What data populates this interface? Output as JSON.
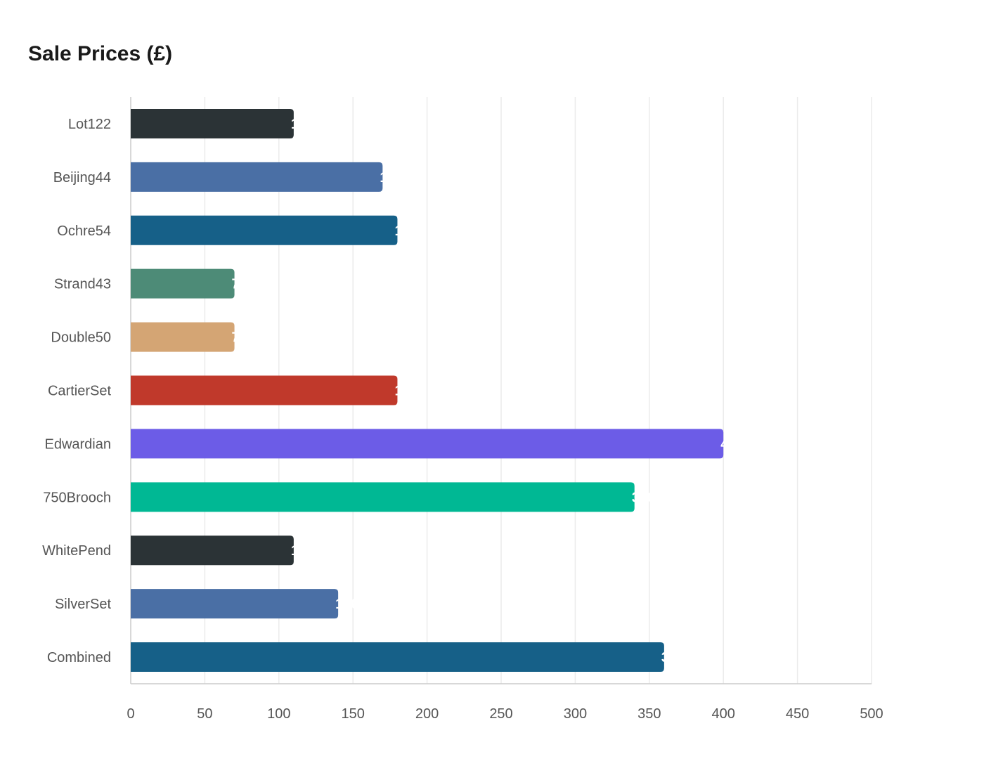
{
  "chart_data": {
    "type": "bar",
    "orientation": "horizontal",
    "title": "Sale Prices (£)",
    "categories": [
      "Lot122",
      "Beijing44",
      "Ochre54",
      "Strand43",
      "Double50",
      "CartierSet",
      "Edwardian",
      "750Brooch",
      "WhitePend",
      "SilverSet",
      "Combined"
    ],
    "values": [
      110,
      170,
      180,
      70,
      70,
      180,
      400,
      340,
      110,
      140,
      360
    ],
    "colors": [
      "#2b3336",
      "#4a6fa5",
      "#166088",
      "#4d8b77",
      "#d4a574",
      "#c0392b",
      "#6c5ce7",
      "#00b894",
      "#2b3336",
      "#4a6fa5",
      "#166088"
    ],
    "xlim": [
      0,
      500
    ],
    "xticks": [
      0,
      50,
      100,
      150,
      200,
      250,
      300,
      350,
      400,
      450,
      500
    ],
    "grid": true,
    "legend": "none"
  }
}
